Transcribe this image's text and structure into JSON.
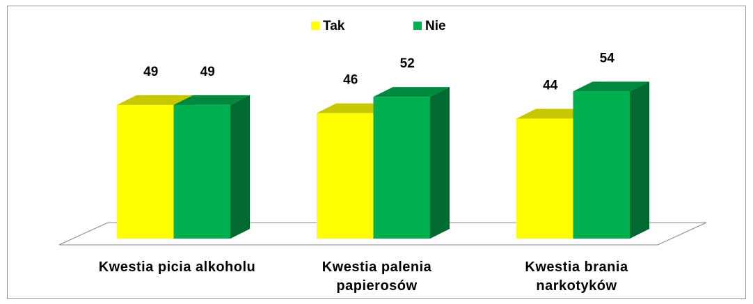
{
  "chart_data": {
    "type": "bar3d",
    "categories": [
      "Kwestia picia alkoholu",
      "Kwestia palenia papierosów",
      "Kwestia brania narkotyków"
    ],
    "series": [
      {
        "name": "Tak",
        "color": "#ffff00",
        "values": [
          49,
          46,
          44
        ]
      },
      {
        "name": "Nie",
        "color": "#00b050",
        "values": [
          49,
          52,
          54
        ]
      }
    ],
    "legend": "top"
  }
}
